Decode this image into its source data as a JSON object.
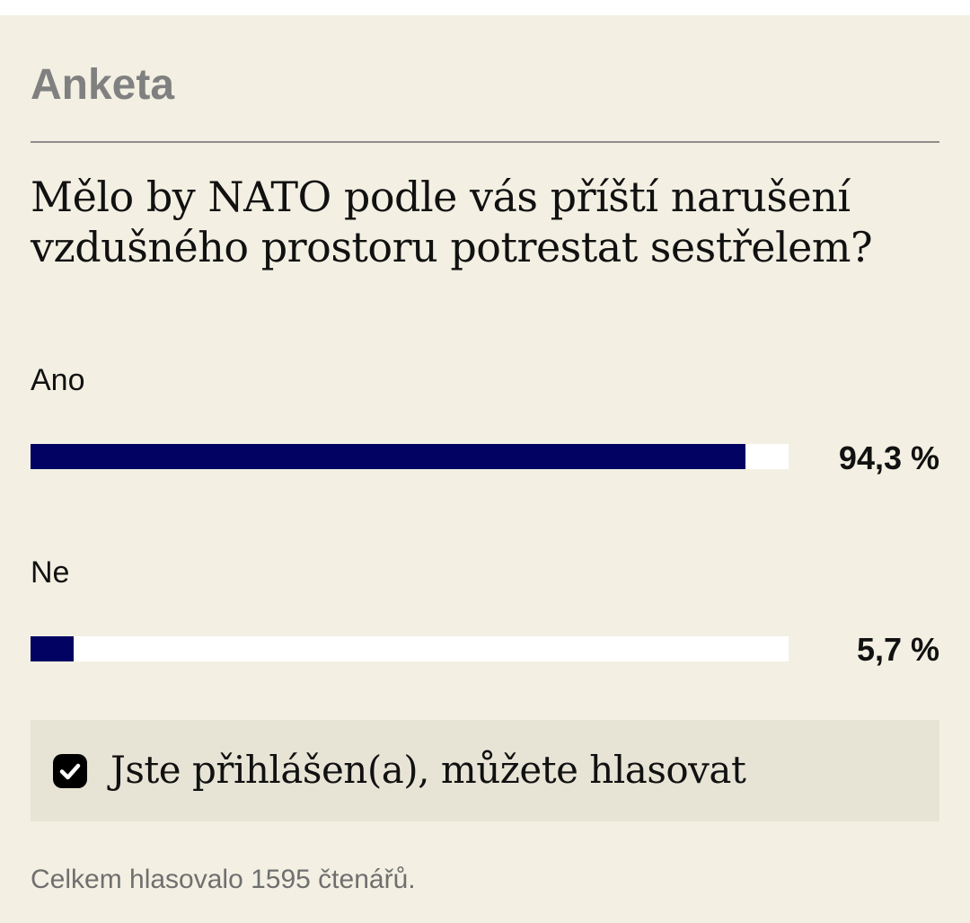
{
  "poll": {
    "heading": "Anketa",
    "question": "Mělo by NATO podle vás příští narušení vzdušného prostoru potrestat sestřelem?",
    "options": [
      {
        "label": "Ano",
        "percent_text": "94,3 %",
        "percent": 94.3
      },
      {
        "label": "Ne",
        "percent_text": "5,7 %",
        "percent": 5.7
      }
    ],
    "login_notice": {
      "icon": "checkbox-checked-icon",
      "text": "Jste přihlášen(a), můžete hlasovat"
    },
    "total_text": "Celkem hlasovalo 1595 čtenářů."
  },
  "colors": {
    "background": "#f3f0e3",
    "bar_fill": "#020262",
    "bar_track": "#ffffff",
    "heading": "#808080",
    "notice_bg": "#e7e4d5"
  }
}
